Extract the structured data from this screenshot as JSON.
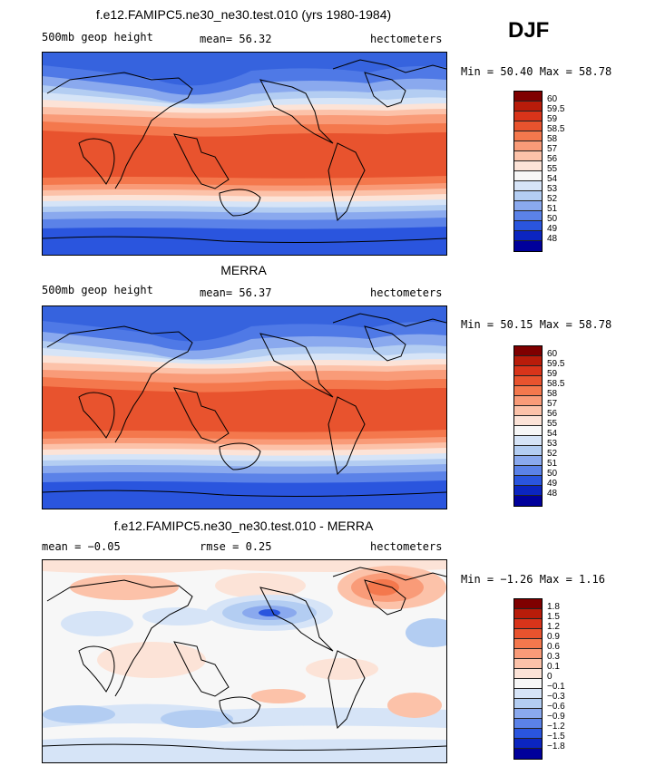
{
  "season": "DJF",
  "panels": [
    {
      "title": "f.e12.FAMIPC5.ne30_ne30.test.010 (yrs 1980-1984)",
      "left_label": "500mb geop height",
      "mid_label": "mean=  56.32",
      "right_label": "hectometers",
      "minmax": "Min =  50.40 Max =  58.78"
    },
    {
      "title": "MERRA",
      "left_label": "500mb geop height",
      "mid_label": "mean=  56.37",
      "right_label": "hectometers",
      "minmax": "Min =  50.15 Max =  58.78"
    },
    {
      "title": "f.e12.FAMIPC5.ne30_ne30.test.010 - MERRA",
      "left_label": "mean =  −0.05",
      "mid_label": "rmse =   0.25",
      "right_label": "hectometers",
      "minmax": "Min =  −1.26 Max =   1.16"
    }
  ],
  "colorbars": {
    "abs": {
      "labels": [
        "60",
        "59.5",
        "59",
        "58.5",
        "58",
        "57",
        "56",
        "55",
        "54",
        "53",
        "52",
        "51",
        "50",
        "49",
        "48"
      ],
      "colors": [
        "#7f0000",
        "#b81c0a",
        "#d8341a",
        "#e8532e",
        "#f4784d",
        "#f99b78",
        "#fcc2a9",
        "#fce3d7",
        "#f7f7f7",
        "#d6e4f7",
        "#b3cdf2",
        "#8aa9ee",
        "#5b82e8",
        "#2a55de",
        "#0b25c0",
        "#00009b"
      ]
    },
    "diff": {
      "labels": [
        "1.8",
        "1.5",
        "1.2",
        "0.9",
        "0.6",
        "0.3",
        "0.1",
        "0",
        "−0.1",
        "−0.3",
        "−0.6",
        "−0.9",
        "−1.2",
        "−1.5",
        "−1.8"
      ],
      "colors": [
        "#7f0000",
        "#b81c0a",
        "#d8341a",
        "#e8532e",
        "#f4784d",
        "#f99b78",
        "#fcc2a9",
        "#fce3d7",
        "#f7f7f7",
        "#d6e4f7",
        "#b3cdf2",
        "#8aa9ee",
        "#5b82e8",
        "#2a55de",
        "#0b25c0",
        "#00009b"
      ]
    }
  }
}
